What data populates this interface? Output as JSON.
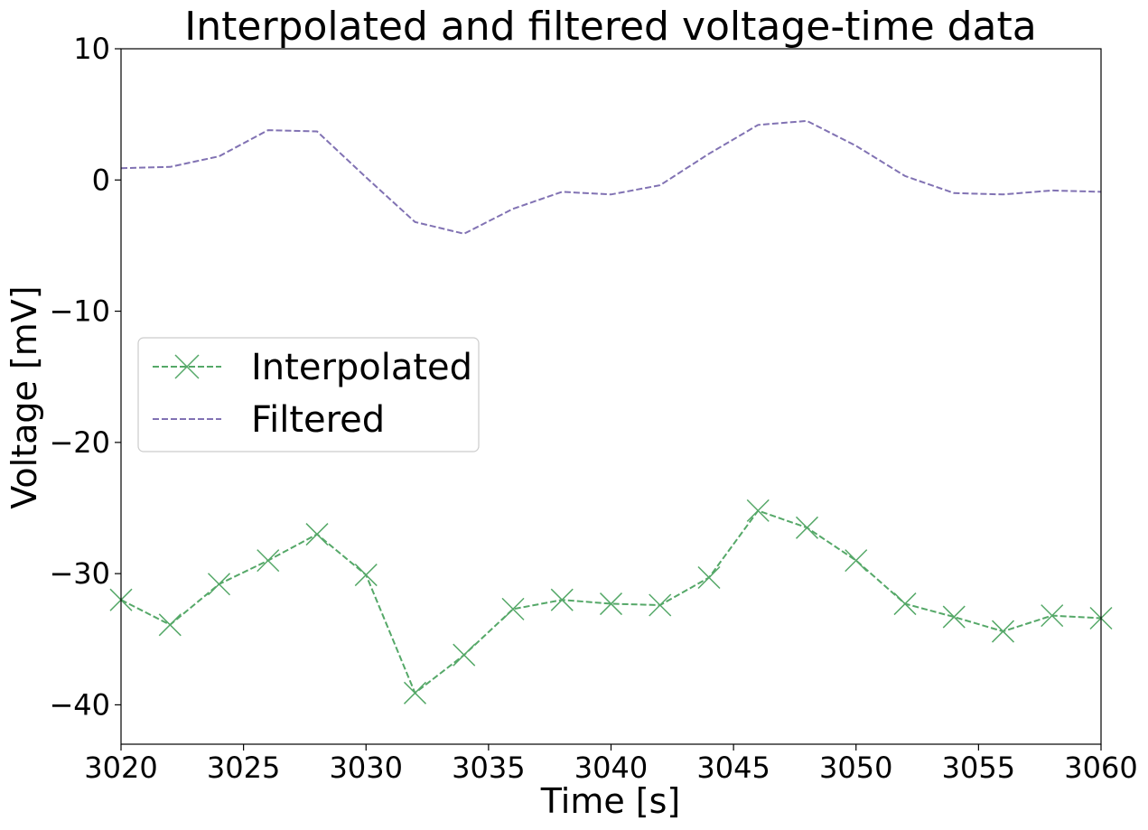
{
  "chart_data": {
    "type": "line",
    "title": "Interpolated and filtered voltage-time data",
    "xlabel": "Time [s]",
    "ylabel": "Voltage [mV]",
    "xlim": [
      3020,
      3060
    ],
    "ylim": [
      -43,
      10
    ],
    "xticks": [
      3020,
      3025,
      3030,
      3035,
      3040,
      3045,
      3050,
      3055,
      3060
    ],
    "xtick_labels": [
      "3020",
      "3025",
      "3030",
      "3035",
      "3040",
      "3045",
      "3050",
      "3055",
      "3060"
    ],
    "yticks": [
      10,
      0,
      -10,
      -20,
      -30,
      -40
    ],
    "ytick_labels": [
      "10",
      "0",
      "−10",
      "−20",
      "−30",
      "−40"
    ],
    "grid": false,
    "legend_position": "center-left",
    "series": [
      {
        "name": "Interpolated",
        "color": "#55a868",
        "linestyle": "dashed",
        "marker": "x",
        "x": [
          3020,
          3022,
          3024,
          3026,
          3028,
          3030,
          3032,
          3034,
          3036,
          3038,
          3040,
          3042,
          3044,
          3046,
          3048,
          3050,
          3052,
          3054,
          3056,
          3058,
          3060
        ],
        "y": [
          -32.0,
          -33.9,
          -30.8,
          -29.0,
          -27.0,
          -30.1,
          -39.1,
          -36.2,
          -32.7,
          -32.0,
          -32.3,
          -32.4,
          -30.3,
          -25.2,
          -26.5,
          -29.0,
          -32.3,
          -33.3,
          -34.4,
          -33.2,
          -33.4
        ]
      },
      {
        "name": "Filtered",
        "color": "#8172b3",
        "linestyle": "dashed",
        "marker": "",
        "x": [
          3020,
          3022,
          3024,
          3026,
          3028,
          3030,
          3032,
          3034,
          3036,
          3038,
          3040,
          3042,
          3044,
          3046,
          3048,
          3050,
          3052,
          3054,
          3056,
          3058,
          3060
        ],
        "y": [
          0.9,
          1.0,
          1.8,
          3.8,
          3.7,
          0.2,
          -3.2,
          -4.1,
          -2.2,
          -0.9,
          -1.1,
          -0.4,
          2.0,
          4.2,
          4.5,
          2.6,
          0.3,
          -1.0,
          -1.1,
          -0.8,
          -0.9
        ]
      }
    ]
  }
}
